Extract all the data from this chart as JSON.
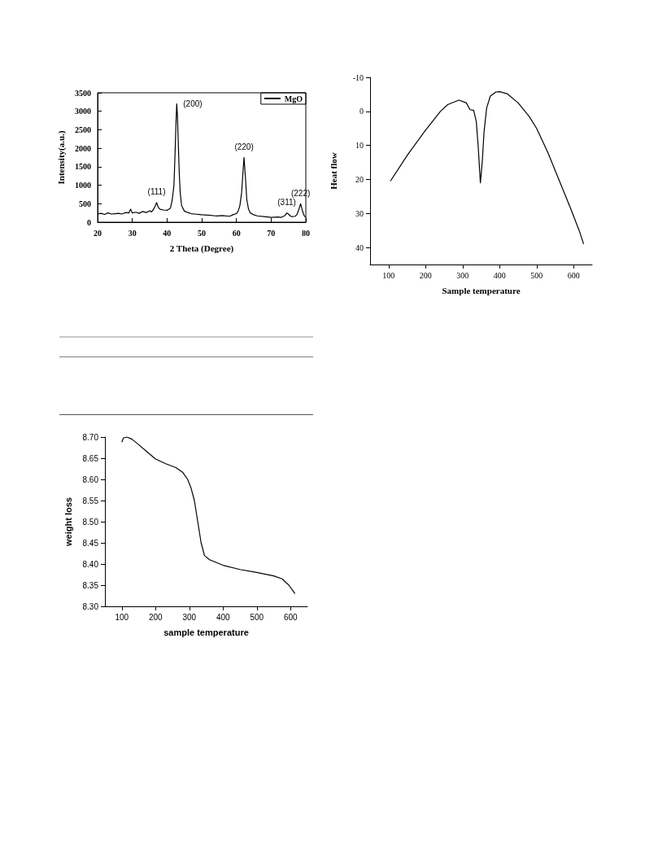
{
  "chart_data": [
    {
      "type": "line",
      "xlabel": "2 Theta (Degree)",
      "ylabel": "Intensity(a.u.)",
      "xlim": [
        20,
        80
      ],
      "ylim": [
        0,
        3500
      ],
      "xticks": [
        20,
        30,
        40,
        50,
        60,
        70,
        80
      ],
      "yticks": [
        0,
        500,
        1000,
        1500,
        2000,
        2500,
        3000,
        3500
      ],
      "legend": "top right",
      "grid": false,
      "series": [
        {
          "name": "MgO",
          "color": "#000000",
          "x": [
            20,
            21,
            22,
            23,
            24,
            25,
            26,
            27,
            28,
            29,
            29.5,
            30,
            31,
            32,
            33,
            34,
            35,
            35.5,
            36,
            36.5,
            37,
            37.5,
            38,
            39,
            40,
            41,
            41.5,
            42,
            42.3,
            42.6,
            42.8,
            43,
            43.2,
            43.5,
            43.8,
            44.2,
            45,
            46,
            47,
            48,
            50,
            52,
            54,
            56,
            58,
            59,
            60,
            60.5,
            61,
            61.5,
            62,
            62.2,
            62.6,
            63,
            63.5,
            64,
            65,
            66,
            68,
            70,
            72,
            73,
            74,
            74.5,
            75,
            75.5,
            76,
            77,
            77.5,
            78,
            78.5,
            79,
            79.5,
            80
          ],
          "values": [
            220,
            240,
            210,
            250,
            220,
            230,
            240,
            220,
            260,
            250,
            350,
            250,
            270,
            240,
            290,
            260,
            310,
            280,
            330,
            420,
            530,
            400,
            350,
            330,
            320,
            380,
            600,
            1000,
            1800,
            2700,
            3200,
            2900,
            2300,
            1400,
            800,
            450,
            300,
            260,
            230,
            220,
            200,
            190,
            170,
            180,
            160,
            200,
            230,
            300,
            450,
            800,
            1500,
            1750,
            1200,
            600,
            350,
            250,
            200,
            170,
            150,
            130,
            140,
            130,
            180,
            250,
            220,
            170,
            150,
            160,
            220,
            350,
            500,
            320,
            180,
            130
          ]
        }
      ],
      "annotations": [
        {
          "text": "(111)",
          "x": 37,
          "y": 530
        },
        {
          "text": "(200)",
          "x": 42.8,
          "y": 3200
        },
        {
          "text": "(220)",
          "x": 62.2,
          "y": 1750
        },
        {
          "text": "(311)",
          "x": 74.5,
          "y": 250
        },
        {
          "text": "(222)",
          "x": 78.5,
          "y": 500
        }
      ]
    },
    {
      "type": "line",
      "xlabel": "Sample temperature",
      "ylabel": "Heat flow",
      "xlim": [
        50,
        650
      ],
      "ylim": [
        45,
        -10
      ],
      "xticks": [
        100,
        200,
        300,
        400,
        500,
        600
      ],
      "yticks": [
        -10,
        0,
        10,
        20,
        30,
        40
      ],
      "grid": false,
      "series": [
        {
          "color": "#000000",
          "x": [
            105,
            150,
            200,
            240,
            260,
            290,
            310,
            320,
            330,
            337,
            342,
            348,
            353,
            358,
            365,
            375,
            390,
            400,
            420,
            450,
            480,
            500,
            530,
            560,
            590,
            615,
            627
          ],
          "values": [
            20.5,
            13,
            5.5,
            0,
            -2,
            -3.3,
            -2.5,
            -0.5,
            -0.3,
            3,
            10,
            21,
            15,
            6,
            -1,
            -4.5,
            -5.7,
            -5.8,
            -5.2,
            -2.5,
            1.5,
            5,
            12,
            20,
            28,
            35,
            39
          ]
        }
      ]
    },
    {
      "type": "line",
      "xlabel": "sample temperature",
      "ylabel": "weight loss",
      "xlim": [
        50,
        650
      ],
      "ylim": [
        8.3,
        8.7
      ],
      "xticks": [
        100,
        200,
        300,
        400,
        500,
        600
      ],
      "yticks": [
        {
          "value": 8.3,
          "label": "8.30"
        },
        8.35,
        {
          "value": 8.4,
          "label": "8.40"
        },
        8.45,
        {
          "value": 8.5,
          "label": "8.50"
        },
        8.55,
        {
          "value": 8.6,
          "label": "8.60"
        },
        8.65,
        {
          "value": 8.7,
          "label": "8.70"
        }
      ],
      "grid": false,
      "series": [
        {
          "color": "#000000",
          "x": [
            100,
            105,
            115,
            130,
            150,
            175,
            200,
            230,
            260,
            280,
            295,
            305,
            315,
            325,
            335,
            345,
            360,
            400,
            450,
            500,
            550,
            575,
            595,
            613
          ],
          "values": [
            8.688,
            8.698,
            8.7,
            8.695,
            8.682,
            8.665,
            8.648,
            8.637,
            8.628,
            8.617,
            8.6,
            8.58,
            8.55,
            8.5,
            8.45,
            8.42,
            8.41,
            8.397,
            8.387,
            8.38,
            8.372,
            8.365,
            8.35,
            8.33
          ]
        }
      ]
    }
  ]
}
